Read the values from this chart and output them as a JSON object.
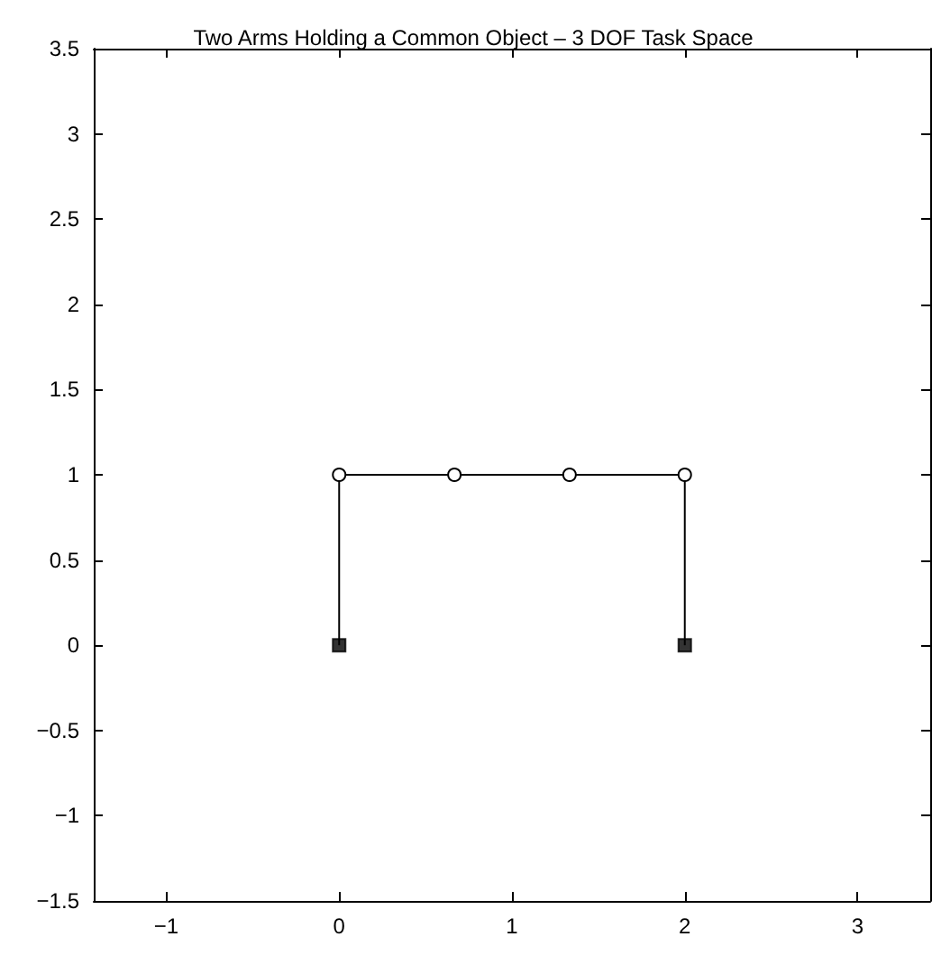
{
  "chart_data": {
    "type": "line",
    "title": "Two Arms Holding a Common Object – 3 DOF Task Space",
    "xlim": [
      -1.42,
      3.42
    ],
    "xticks": [
      -1,
      0,
      1,
      2,
      3
    ],
    "ylim": [
      -1.5,
      3.5
    ],
    "yticks": [
      -1.5,
      -1,
      -0.5,
      0,
      0.5,
      1,
      1.5,
      2,
      2.5,
      3,
      3.5
    ],
    "grid": false,
    "line_style": "solid",
    "series": [
      {
        "color": "#000000",
        "x": [
          0,
          0
        ],
        "values": [
          0,
          1
        ]
      },
      {
        "color": "#000000",
        "x": [
          2,
          2
        ],
        "values": [
          0,
          1
        ]
      },
      {
        "color": "#000000",
        "marker": "circle",
        "x": [
          0,
          0.667,
          1.333,
          2
        ],
        "values": [
          1,
          1,
          1,
          1
        ]
      },
      {
        "type": "scatter",
        "color": "#000000",
        "marker": "square",
        "x": [
          0,
          2
        ],
        "values": [
          0,
          0
        ]
      }
    ]
  }
}
